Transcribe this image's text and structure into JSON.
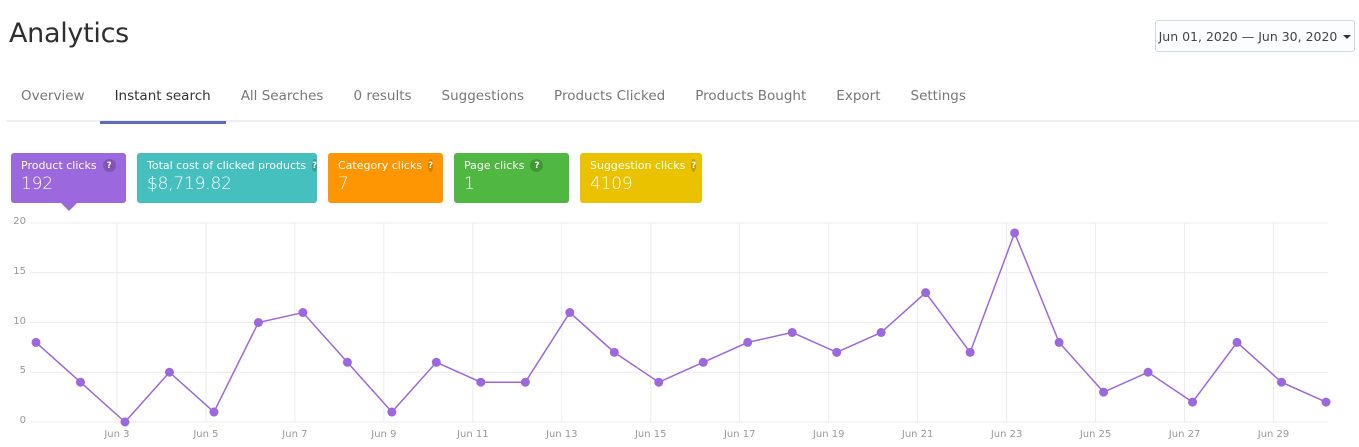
{
  "header": {
    "title": "Analytics",
    "date_range": "Jun 01, 2020 — Jun 30, 2020"
  },
  "tabs": [
    {
      "label": "Overview",
      "active": false
    },
    {
      "label": "Instant search",
      "active": true
    },
    {
      "label": "All Searches",
      "active": false
    },
    {
      "label": "0 results",
      "active": false
    },
    {
      "label": "Suggestions",
      "active": false
    },
    {
      "label": "Products Clicked",
      "active": false
    },
    {
      "label": "Products Bought",
      "active": false
    },
    {
      "label": "Export",
      "active": false
    },
    {
      "label": "Settings",
      "active": false
    }
  ],
  "cards": [
    {
      "label": "Product clicks",
      "value": "192",
      "color": "#9c68dd",
      "width": 115,
      "active": true,
      "help_icon": "?"
    },
    {
      "label": "Total cost of clicked products",
      "value": "$8,719.82",
      "color": "#46c0be",
      "width": 180,
      "active": false,
      "help_icon": "?"
    },
    {
      "label": "Category clicks",
      "value": "7",
      "color": "#fd9602",
      "width": 115,
      "active": false,
      "help_icon": "?"
    },
    {
      "label": "Page clicks",
      "value": "1",
      "color": "#50b842",
      "width": 115,
      "active": false,
      "help_icon": "?"
    },
    {
      "label": "Suggestion clicks",
      "value": "4109",
      "color": "#ebc200",
      "width": 122,
      "active": false,
      "help_icon": "?"
    }
  ],
  "chart_data": {
    "type": "line",
    "title": "",
    "xlabel": "",
    "ylabel": "",
    "series": [
      {
        "name": "Product clicks",
        "color": "#9c68dd",
        "values": [
          8,
          4,
          0,
          5,
          1,
          10,
          11,
          6,
          1,
          6,
          4,
          4,
          11,
          7,
          4,
          6,
          8,
          9,
          7,
          9,
          13,
          7,
          19,
          8,
          3,
          5,
          2,
          8,
          4,
          2
        ]
      }
    ],
    "x": [
      "Jun 1",
      "Jun 2",
      "Jun 3",
      "Jun 4",
      "Jun 5",
      "Jun 6",
      "Jun 7",
      "Jun 8",
      "Jun 9",
      "Jun 10",
      "Jun 11",
      "Jun 12",
      "Jun 13",
      "Jun 14",
      "Jun 15",
      "Jun 16",
      "Jun 17",
      "Jun 18",
      "Jun 19",
      "Jun 20",
      "Jun 21",
      "Jun 22",
      "Jun 23",
      "Jun 24",
      "Jun 25",
      "Jun 26",
      "Jun 27",
      "Jun 28",
      "Jun 29",
      "Jun 30"
    ],
    "x_tick_labels": [
      "Jun 3",
      "Jun 5",
      "Jun 7",
      "Jun 9",
      "Jun 11",
      "Jun 13",
      "Jun 15",
      "Jun 17",
      "Jun 19",
      "Jun 21",
      "Jun 23",
      "Jun 25",
      "Jun 27",
      "Jun 29"
    ],
    "y_tick_labels": [
      "0",
      "5",
      "10",
      "15",
      "20"
    ],
    "ylim": [
      0,
      20
    ],
    "grid": true,
    "legend": "none"
  }
}
